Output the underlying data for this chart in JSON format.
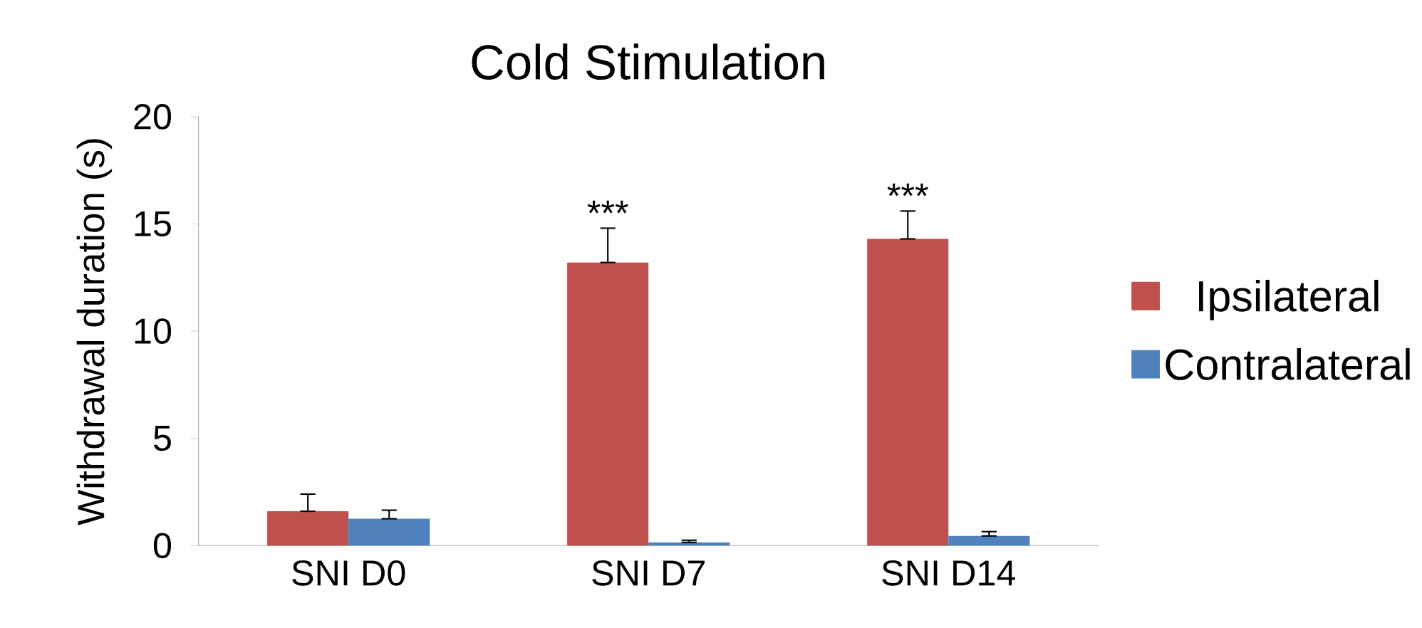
{
  "chart_data": {
    "type": "bar",
    "title": "Cold Stimulation",
    "ylabel": "Withdrawal duration (s)",
    "categories": [
      "SNI D0",
      "SNI D7",
      "SNI D14"
    ],
    "series": [
      {
        "name": "Ipsilateral",
        "color": "#c0504d",
        "values": [
          1.6,
          13.2,
          14.3
        ],
        "errors": [
          [
            1.6,
            2.4
          ],
          [
            13.2,
            14.8
          ],
          [
            14.3,
            15.6
          ]
        ]
      },
      {
        "name": "Contralateral",
        "color": "#4f81bd",
        "values": [
          1.25,
          0.15,
          0.45
        ],
        "errors": [
          [
            1.25,
            1.65
          ],
          [
            0.15,
            0.25
          ],
          [
            0.45,
            0.65
          ]
        ]
      }
    ],
    "ylim": [
      0,
      20
    ],
    "yticks": [
      0,
      5,
      10,
      15,
      20
    ],
    "grid": false,
    "legend": "right",
    "annotations": [
      "***",
      "***"
    ]
  }
}
